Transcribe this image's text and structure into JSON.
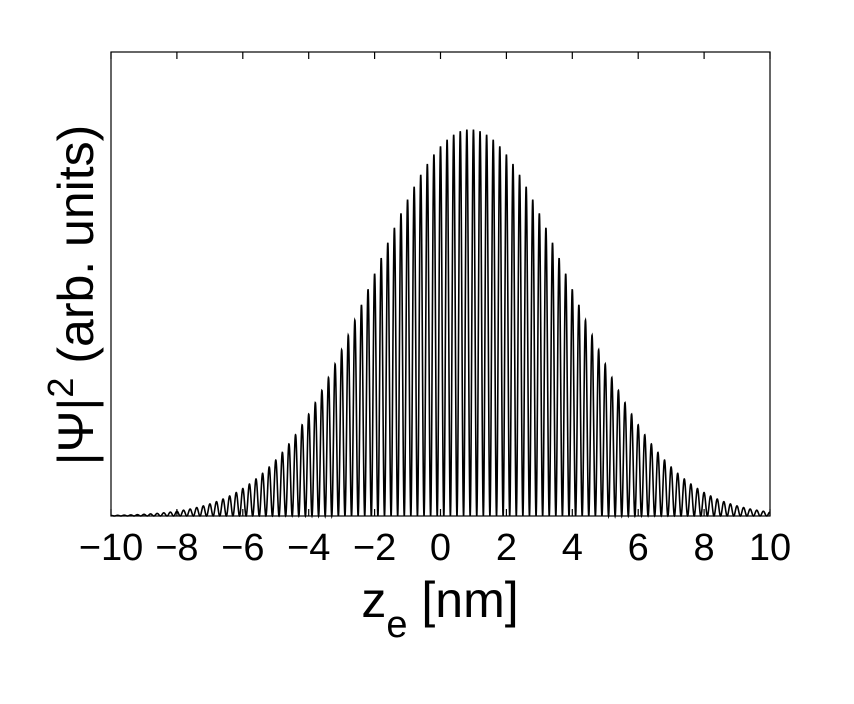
{
  "chart_data": {
    "type": "line",
    "title": "",
    "xlabel": "z",
    "xlabel_subscript": "e",
    "xlabel_unit": "[nm]",
    "ylabel_symbol": "|Ψ|",
    "ylabel_superscript": "2",
    "ylabel_unit": "(arb. units)",
    "xlim": [
      -10,
      10
    ],
    "ylim": [
      0,
      1.2
    ],
    "x_ticks": [
      -10,
      -8,
      -6,
      -4,
      -2,
      0,
      2,
      4,
      6,
      8,
      10
    ],
    "x_tick_labels": [
      "−10",
      "−8",
      "−6",
      "−4",
      "−2",
      "0",
      "2",
      "4",
      "6",
      "8",
      "10"
    ],
    "y_ticks_labeled": false,
    "grid": false,
    "line_color": "#000000",
    "series": [
      {
        "envelope": "gaussian",
        "peak_amplitude": 1.0,
        "center": 0.9,
        "sigma": 3.0,
        "oscillation_period": 0.2,
        "minimum_value": 0.0
      }
    ]
  }
}
